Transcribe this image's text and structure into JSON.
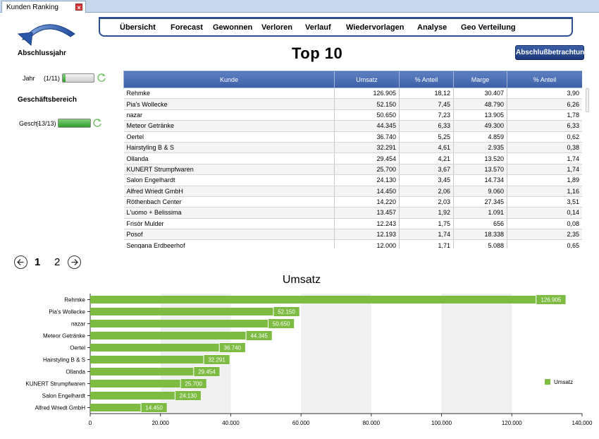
{
  "window": {
    "tab_title": "Kunden Ranking",
    "close_glyph": "×"
  },
  "nav": {
    "items": [
      "Übersicht",
      "Forecast",
      "Gewonnen",
      "Verloren",
      "Verlauf",
      "Wiedervorlagen",
      "Analyse",
      "Geo Verteilung"
    ]
  },
  "filters": {
    "year_section": "Abschlussjahr",
    "year_label": "Jahr",
    "year_count": "(1/11)",
    "year_fill": 0.09,
    "business_section": "Geschäftsbereich",
    "business_label": "Gesch-",
    "business_count": "(13/13)",
    "business_fill": 1.0
  },
  "title": "Top 10",
  "abschluss_button": "Abschlußbetrachtung",
  "table": {
    "columns": [
      "Kunde",
      "Umsatz",
      "% Anteil",
      "Marge",
      "% Anteil"
    ],
    "rows": [
      [
        "Rehmke",
        "126.905",
        "18,12",
        "30.407",
        "3,90"
      ],
      [
        "Pia's Wollecke",
        "52.150",
        "7,45",
        "48.790",
        "6,26"
      ],
      [
        "nazar",
        "50.650",
        "7,23",
        "13.905",
        "1,78"
      ],
      [
        "Meteor Getränke",
        "44.345",
        "6,33",
        "49.300",
        "6,33"
      ],
      [
        "Oertel",
        "36.740",
        "5,25",
        "4.859",
        "0,62"
      ],
      [
        "Hairstyling B & S",
        "32.291",
        "4,61",
        "2.935",
        "0,38"
      ],
      [
        "Ollanda",
        "29.454",
        "4,21",
        "13.520",
        "1,74"
      ],
      [
        "KUNERT Strumpfwaren",
        "25.700",
        "3,67",
        "13.570",
        "1,74"
      ],
      [
        "Salon Engelhardt",
        "24.130",
        "3,45",
        "14.734",
        "1,89"
      ],
      [
        "Alfred Wriedt GmbH",
        "14.450",
        "2,06",
        "9.060",
        "1,16"
      ],
      [
        "Röthenbach Center",
        "14.220",
        "2,03",
        "27.345",
        "3,51"
      ],
      [
        "L'uomo + Belissima",
        "13.457",
        "1,92",
        "1.091",
        "0,14"
      ],
      [
        "Frisör Mulder",
        "12.243",
        "1,75",
        "656",
        "0,08"
      ],
      [
        "Posof",
        "12.193",
        "1,74",
        "18.338",
        "2,35"
      ],
      [
        "Sengana Erdbeerhof",
        "12.000",
        "1,71",
        "5.088",
        "0,65"
      ]
    ]
  },
  "pager": {
    "page1": "1",
    "page2": "2"
  },
  "chart_data": {
    "type": "bar",
    "orientation": "horizontal",
    "title": "Umsatz",
    "categories": [
      "Rehmke",
      "Pia's Wollecke",
      "nazar",
      "Meteor Getränke",
      "Oertel",
      "Hairstyling B & S",
      "Ollanda",
      "KUNERT Strumpfwaren",
      "Salon Engelhardt",
      "Alfred Wriedt GmbH"
    ],
    "series": [
      {
        "name": "Umsatz",
        "values": [
          126905,
          52150,
          50650,
          44345,
          36740,
          32291,
          29454,
          25700,
          24130,
          14450
        ]
      }
    ],
    "data_labels": [
      "126.905",
      "52.150",
      "50.650",
      "44.345",
      "36.740",
      "32.291",
      "29.454",
      "25.700",
      "24.130",
      "14.450"
    ],
    "xlim": [
      0,
      140000
    ],
    "x_ticks": [
      0,
      20000,
      40000,
      60000,
      80000,
      100000,
      120000,
      140000
    ],
    "x_tick_labels": [
      "0",
      "20.000",
      "40.000",
      "60.000",
      "80.000",
      "100.000",
      "120.000",
      "140.000"
    ],
    "legend": "right",
    "bar_color": "#7dbb42",
    "band_color": "#f0f0f0"
  }
}
